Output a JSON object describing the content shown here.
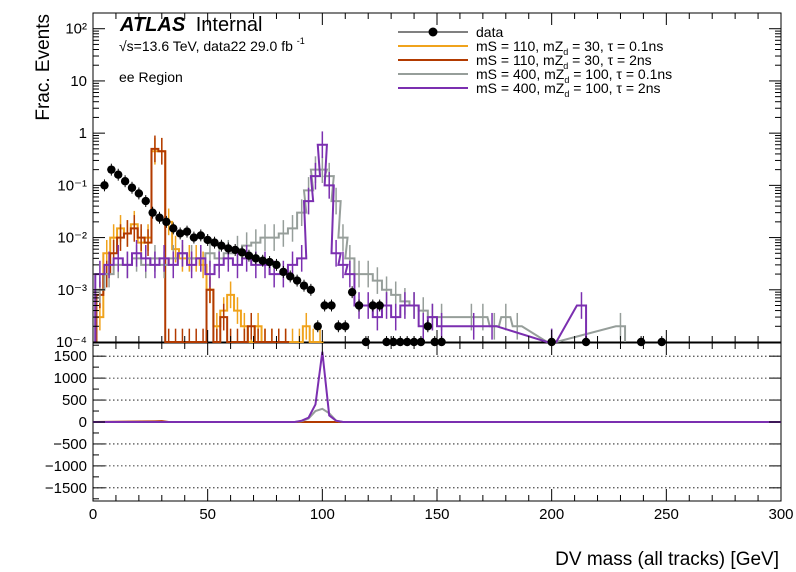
{
  "figure": {
    "atlas_label": "ATLAS",
    "internal_label": "Internal",
    "energy_label": "√s=13.6 TeV, data22 29.0 fb",
    "lumi_exponent": "-1",
    "region_label": "ee Region"
  },
  "chart_data": [
    {
      "type": "line",
      "panel": "top",
      "ylabel": "Frac. Events",
      "xlabel": "",
      "yscale": "log",
      "ylim": [
        0.0001,
        200
      ],
      "xlim": [
        0,
        300
      ],
      "ytick_labels": [
        "10⁻⁴",
        "10⁻³",
        "10⁻²",
        "10⁻¹",
        "1",
        "10",
        "10²"
      ],
      "grid": false,
      "legend_position": "top-right",
      "series": [
        {
          "name": "data",
          "color": "#000000",
          "style": "markers",
          "x": [
            5,
            8,
            11,
            14,
            17,
            20,
            23,
            26,
            29,
            32,
            35,
            38,
            41,
            44,
            47,
            50,
            53,
            56,
            59,
            62,
            65,
            68,
            71,
            74,
            77,
            80,
            83,
            86,
            89,
            92,
            95,
            98,
            101,
            104,
            107,
            110,
            113,
            116,
            119,
            122,
            125,
            128,
            131,
            134,
            137,
            140,
            143,
            146,
            149,
            152,
            200,
            215,
            239,
            248
          ],
          "y": [
            0.1,
            0.2,
            0.16,
            0.12,
            0.09,
            0.07,
            0.05,
            0.03,
            0.024,
            0.02,
            0.015,
            0.012,
            0.013,
            0.01,
            0.011,
            0.009,
            0.008,
            0.007,
            0.0062,
            0.0058,
            0.0052,
            0.0045,
            0.004,
            0.0036,
            0.0034,
            0.003,
            0.0022,
            0.0018,
            0.0015,
            0.0012,
            0.001,
            0.0002,
            0.0005,
            0.0005,
            0.0002,
            0.0002,
            0.0009,
            0.0005,
            0.0001,
            0.0005,
            0.0005,
            0.0001,
            0.0001,
            0.0001,
            0.0001,
            0.0001,
            0.0001,
            0.0002,
            0.0001,
            0.0001,
            0.0001,
            0.0001,
            0.0001,
            0.0001
          ]
        },
        {
          "name": "mS = 110, mZ_d = 30, τ = 0.1ns",
          "legend_main": "mS = 110, mZ",
          "legend_sub": "d",
          "legend_rest": " = 30, τ = 0.1ns",
          "color": "#f0a31c",
          "style": "step",
          "x": [
            3,
            6,
            9,
            12,
            15,
            18,
            21,
            24,
            27,
            30,
            33,
            36,
            39,
            42,
            45,
            48,
            51,
            54,
            57,
            60,
            63,
            66,
            69,
            72,
            75,
            78,
            81,
            84,
            87,
            90,
            93,
            96,
            99
          ],
          "y": [
            0.0003,
            0.005,
            0.01,
            0.015,
            0.012,
            0.018,
            0.008,
            0.01,
            0.45,
            0.45,
            0.02,
            0.006,
            0.004,
            0.004,
            0.004,
            0.003,
            0.001,
            0.0002,
            0.0004,
            0.0008,
            0.0004,
            0.0002,
            0.0001,
            0.0002,
            0.0001,
            0.0001,
            0.0001,
            0.0001,
            0.0001,
            0.0001,
            0.0002,
            0.0001,
            0.0001
          ]
        },
        {
          "name": "mS = 110, mZ_d = 30, τ = 2ns",
          "legend_main": "mS = 110, mZ",
          "legend_sub": "d",
          "legend_rest": " = 30, τ = 2ns",
          "color": "#b23a00",
          "style": "step",
          "x": [
            3,
            6,
            9,
            12,
            15,
            18,
            21,
            24,
            27,
            30,
            33,
            36,
            39,
            42,
            45,
            48,
            51,
            54,
            57,
            60,
            63,
            66,
            69,
            72,
            75,
            78,
            81,
            84
          ],
          "y": [
            0.0008,
            0.002,
            0.005,
            0.01,
            0.012,
            0.015,
            0.01,
            0.008,
            0.5,
            0.45,
            0.0001,
            0.0001,
            0.0001,
            0.0001,
            0.0001,
            0.0001,
            0.001,
            0.0001,
            0.0003,
            0.0001,
            0.0001,
            0.0001,
            0.0002,
            0.0001,
            0.0001,
            0.0001,
            0.0001,
            0.0001
          ]
        },
        {
          "name": "mS = 400, mZ_d = 100, τ = 0.1ns",
          "legend_main": "mS = 400, mZ",
          "legend_sub": "d",
          "legend_rest": " = 100, τ = 0.1ns",
          "color": "#969e9a",
          "style": "step",
          "x": [
            3,
            7,
            11,
            15,
            19,
            23,
            27,
            31,
            35,
            39,
            43,
            47,
            51,
            55,
            59,
            63,
            67,
            71,
            75,
            79,
            83,
            87,
            91,
            94,
            97,
            100,
            103,
            106,
            109,
            112,
            116,
            120,
            124,
            128,
            132,
            136,
            140,
            144,
            148,
            152,
            165,
            170,
            175,
            180,
            185,
            200,
            230
          ],
          "y": [
            0.001,
            0.002,
            0.003,
            0.003,
            0.004,
            0.003,
            0.004,
            0.003,
            0.004,
            0.005,
            0.004,
            0.004,
            0.005,
            0.004,
            0.005,
            0.006,
            0.007,
            0.008,
            0.01,
            0.01,
            0.012,
            0.015,
            0.03,
            0.08,
            0.2,
            0.2,
            0.15,
            0.05,
            0.01,
            0.004,
            0.002,
            0.002,
            0.0015,
            0.001,
            0.0008,
            0.0006,
            0.0005,
            0.0004,
            0.0003,
            0.0003,
            0.0003,
            0.0003,
            0.0002,
            0.0003,
            0.0002,
            0.0001,
            0.0002
          ]
        },
        {
          "name": "mS = 400, mZ_d = 100, τ = 2ns",
          "legend_main": "mS = 400, mZ",
          "legend_sub": "d",
          "legend_rest": " = 100, τ = 2ns",
          "color": "#7b2fb0",
          "style": "step",
          "x": [
            3,
            7,
            11,
            15,
            19,
            23,
            27,
            31,
            35,
            39,
            43,
            47,
            51,
            55,
            59,
            63,
            67,
            71,
            75,
            79,
            83,
            87,
            91,
            94,
            97,
            100,
            103,
            106,
            109,
            112,
            116,
            120,
            124,
            128,
            132,
            136,
            140,
            144,
            148,
            152,
            166,
            174,
            200,
            213
          ],
          "y": [
            0.002,
            0.003,
            0.004,
            0.003,
            0.005,
            0.004,
            0.003,
            0.004,
            0.003,
            0.005,
            0.003,
            0.004,
            0.002,
            0.003,
            0.004,
            0.003,
            0.004,
            0.003,
            0.003,
            0.002,
            0.002,
            0.003,
            0.004,
            0.05,
            0.15,
            0.6,
            0.1,
            0.005,
            0.003,
            0.002,
            0.0005,
            0.0005,
            0.0003,
            0.0005,
            0.0003,
            0.0005,
            0.0005,
            0.0002,
            0.0003,
            0.0002,
            0.0002,
            0.0002,
            0.0001,
            0.0005
          ]
        }
      ]
    },
    {
      "type": "line",
      "panel": "ratio",
      "xlabel": "DV mass (all tracks) [GeV]",
      "ylabel": "",
      "xlim": [
        0,
        300
      ],
      "ylim": [
        -1800,
        1800
      ],
      "xticks": [
        0,
        50,
        100,
        150,
        200,
        250,
        300
      ],
      "yticks": [
        -1500,
        -1000,
        -500,
        0,
        500,
        1000,
        1500
      ],
      "ytick_labels": [
        "−1500",
        "−1000",
        "−500",
        "0",
        "500",
        "1000",
        "1500"
      ],
      "grid": true,
      "series": [
        {
          "name": "",
          "color": "#7b2fb0",
          "x": [
            0,
            88,
            91,
            94,
            97,
            100,
            103,
            106,
            109,
            300
          ],
          "y": [
            0,
            0,
            30,
            100,
            400,
            1600,
            150,
            30,
            0,
            0
          ]
        },
        {
          "name": "",
          "color": "#969e9a",
          "x": [
            0,
            88,
            91,
            94,
            97,
            100,
            103,
            106,
            109,
            300
          ],
          "y": [
            0,
            0,
            20,
            80,
            250,
            300,
            200,
            30,
            0,
            0
          ]
        },
        {
          "name": "",
          "color": "#b23a00",
          "x": [
            0,
            27,
            30,
            33,
            300
          ],
          "y": [
            0,
            15,
            20,
            0,
            0
          ]
        }
      ]
    }
  ]
}
